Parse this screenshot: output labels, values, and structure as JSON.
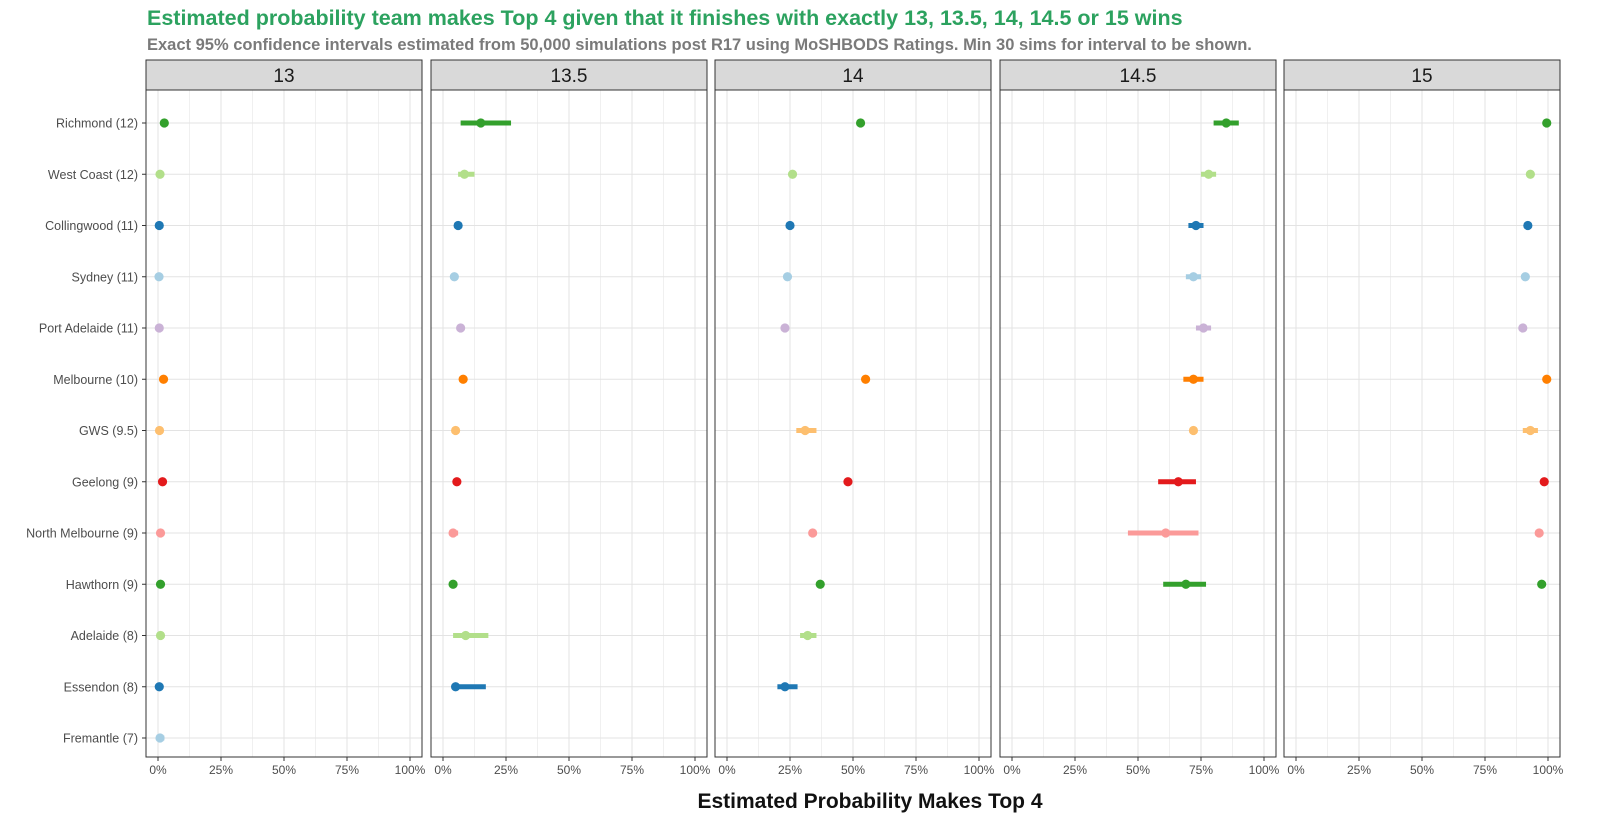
{
  "chart_data": {
    "type": "dot-interval",
    "title": "Estimated probability team makes Top 4 given that it finishes with exactly 13, 13.5, 14, 14.5 or 15 wins",
    "subtitle": "Exact 95% confidence intervals estimated from 50,000 simulations post R17 using MoSHBODS Ratings. Min 30 sims for interval to be shown.",
    "xlabel": "Estimated Probability Makes Top 4",
    "xlim": [
      0,
      1
    ],
    "xticks": [
      0,
      0.25,
      0.5,
      0.75,
      1
    ],
    "xtick_labels": [
      "0%",
      "25%",
      "50%",
      "75%",
      "100%"
    ],
    "grid": true,
    "facets": [
      "13",
      "13.5",
      "14",
      "14.5",
      "15"
    ],
    "teams": [
      "Richmond (12)",
      "West Coast (12)",
      "Collingwood (11)",
      "Sydney (11)",
      "Port Adelaide (11)",
      "Melbourne (10)",
      "GWS (9.5)",
      "Geelong (9)",
      "North Melbourne (9)",
      "Hawthorn (9)",
      "Adelaide (8)",
      "Essendon (8)",
      "Fremantle (7)"
    ],
    "colors": [
      "#33a02c",
      "#b2df8a",
      "#1f78b4",
      "#a6cee3",
      "#cab2d6",
      "#ff7f00",
      "#fdbf6f",
      "#e31a1c",
      "#fb9a99",
      "#33a02c",
      "#b2df8a",
      "#1f78b4",
      "#a6cee3"
    ],
    "series": [
      {
        "facet": "13",
        "points": [
          [
            0.025,
            0.015,
            0.035
          ],
          [
            0.008,
            0.004,
            0.013
          ],
          [
            0.005,
            0.002,
            0.008
          ],
          [
            0.004,
            0.001,
            0.007
          ],
          [
            0.005,
            0.002,
            0.008
          ],
          [
            0.022,
            0.013,
            0.03
          ],
          [
            0.006,
            0.002,
            0.01
          ],
          [
            0.018,
            0.01,
            0.027
          ],
          [
            0.01,
            0.005,
            0.015
          ],
          [
            0.01,
            0.005,
            0.015
          ],
          [
            0.01,
            0.005,
            0.015
          ],
          [
            0.005,
            0.002,
            0.009
          ],
          [
            0.008,
            0.003,
            0.025
          ]
        ]
      },
      {
        "facet": "13.5",
        "points": [
          [
            0.15,
            0.07,
            0.27
          ],
          [
            0.085,
            0.06,
            0.125
          ],
          [
            0.06,
            0.05,
            0.07
          ],
          [
            0.045,
            0.04,
            0.05
          ],
          [
            0.07,
            0.06,
            0.08
          ],
          [
            0.08,
            0.065,
            0.095
          ],
          [
            0.05,
            0.045,
            0.055
          ],
          [
            0.055,
            0.04,
            0.065
          ],
          [
            0.04,
            0.025,
            0.06
          ],
          [
            0.04,
            0.035,
            0.045
          ],
          [
            0.09,
            0.04,
            0.18
          ],
          [
            0.05,
            0.035,
            0.17
          ],
          [
            null,
            null,
            null
          ]
        ]
      },
      {
        "facet": "14",
        "points": [
          [
            0.53,
            0.52,
            0.545
          ],
          [
            0.26,
            0.255,
            0.265
          ],
          [
            0.25,
            0.245,
            0.255
          ],
          [
            0.24,
            0.235,
            0.245
          ],
          [
            0.23,
            0.225,
            0.235
          ],
          [
            0.55,
            0.545,
            0.555
          ],
          [
            0.31,
            0.275,
            0.355
          ],
          [
            0.48,
            0.475,
            0.485
          ],
          [
            0.34,
            0.33,
            0.35
          ],
          [
            0.37,
            0.365,
            0.375
          ],
          [
            0.32,
            0.29,
            0.355
          ],
          [
            0.23,
            0.2,
            0.28
          ],
          [
            null,
            null,
            null
          ]
        ]
      },
      {
        "facet": "14.5",
        "points": [
          [
            0.85,
            0.8,
            0.9
          ],
          [
            0.78,
            0.75,
            0.81
          ],
          [
            0.73,
            0.7,
            0.76
          ],
          [
            0.72,
            0.69,
            0.75
          ],
          [
            0.76,
            0.73,
            0.79
          ],
          [
            0.72,
            0.68,
            0.76
          ],
          [
            0.72,
            0.71,
            0.73
          ],
          [
            0.66,
            0.58,
            0.73
          ],
          [
            0.61,
            0.46,
            0.74
          ],
          [
            0.69,
            0.6,
            0.77
          ],
          [
            null,
            null,
            null
          ],
          [
            null,
            null,
            null
          ],
          [
            null,
            null,
            null
          ]
        ]
      },
      {
        "facet": "15",
        "points": [
          [
            0.995,
            0.99,
            1.0
          ],
          [
            0.93,
            0.92,
            0.94
          ],
          [
            0.92,
            0.91,
            0.93
          ],
          [
            0.91,
            0.9,
            0.92
          ],
          [
            0.9,
            0.89,
            0.91
          ],
          [
            0.995,
            0.99,
            1.0
          ],
          [
            0.93,
            0.9,
            0.96
          ],
          [
            0.985,
            0.975,
            0.995
          ],
          [
            0.965,
            0.95,
            0.98
          ],
          [
            0.975,
            0.965,
            0.985
          ],
          [
            null,
            null,
            null
          ],
          [
            null,
            null,
            null
          ],
          [
            null,
            null,
            null
          ]
        ]
      }
    ]
  }
}
